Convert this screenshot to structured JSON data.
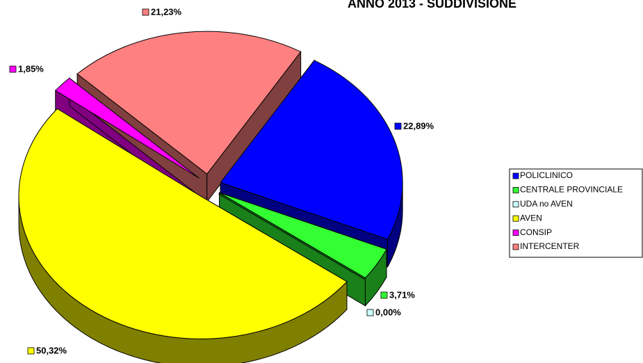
{
  "chart_data": {
    "type": "pie",
    "title": "ANNO 2013 - SUDDIVISIONE",
    "categories": [
      "POLICLINICO",
      "CENTRALE PROVINCIALE",
      "UDA no AVEN",
      "AVEN",
      "CONSIP",
      "INTERCENTER"
    ],
    "values": [
      22.89,
      3.71,
      0.0,
      50.32,
      1.85,
      21.23
    ],
    "value_labels": [
      "22,89%",
      "3,71%",
      "0,00%",
      "50,32%",
      "1,85%",
      "21,23%"
    ],
    "colors": [
      "#0000ff",
      "#33ff33",
      "#ccffff",
      "#ffff00",
      "#ff00ff",
      "#ff8080"
    ],
    "legend": "right"
  }
}
